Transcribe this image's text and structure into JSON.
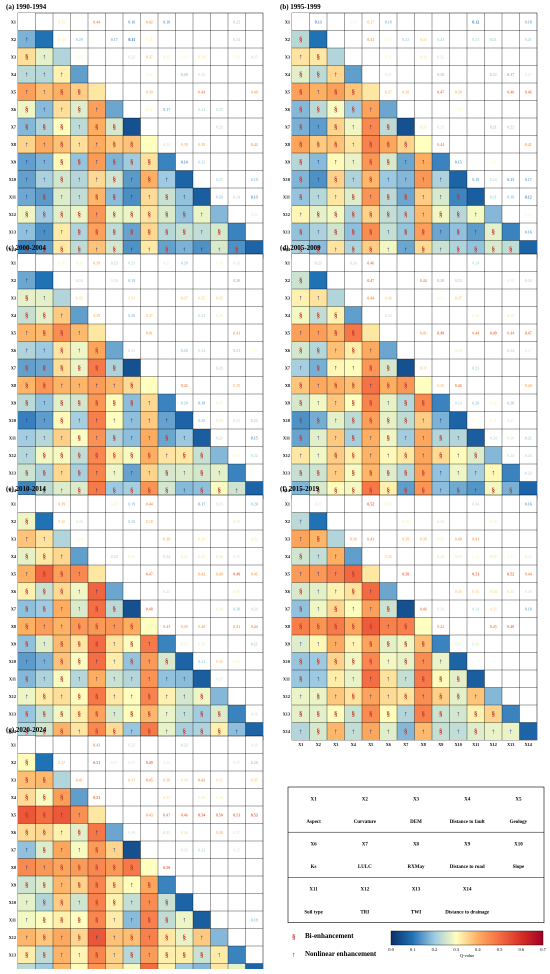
{
  "chart_data": {
    "type": "heatmap",
    "factors": [
      "X1",
      "X2",
      "X3",
      "X4",
      "X5",
      "X6",
      "X7",
      "X8",
      "X9",
      "X10",
      "X11",
      "X12",
      "X13",
      "X14"
    ],
    "panels": [
      {
        "title": "(a) 1990-1994"
      },
      {
        "title": "(b) 1995-1999"
      },
      {
        "title": "(c) 2000-2004"
      },
      {
        "title": "(d) 2005-2009"
      },
      {
        "title": "(e) 2010-2014"
      },
      {
        "title": "(f) 2015-2019"
      },
      {
        "title": "(g) 2020-2024"
      }
    ],
    "colorbar": {
      "label": "Q-value",
      "min": 0.0,
      "max": 0.7,
      "ticks": [
        "0.0",
        "0.1",
        "0.2",
        "0.3",
        "0.4",
        "0.5",
        "0.6",
        "0.7"
      ],
      "colors": [
        "#08306b",
        "#2171b5",
        "#9ecae1",
        "#ffffbf",
        "#fdae61",
        "#f46d43",
        "#d73027",
        "#a50026"
      ]
    },
    "symbols": {
      "bi": "§",
      "nonlinear": "↑"
    },
    "legend": {
      "bi_label": "Bi-enhancement",
      "nonlinear_label": "Nonlinear enhancement"
    },
    "factor_table": [
      [
        "X1",
        "X2",
        "X3",
        "X4",
        "X5"
      ],
      [
        "Aspect",
        "Curvature",
        "DEM",
        "Distance to fault",
        "Geology"
      ],
      [
        "X6",
        "X7",
        "X8",
        "X9",
        "X10"
      ],
      [
        "Ks",
        "LULC",
        "RXMay",
        "Distance to road",
        "Slope"
      ],
      [
        "X11",
        "X12",
        "X13",
        "X14",
        ""
      ],
      [
        "Soil type",
        "TRI",
        "TWI",
        "Distance to drainage",
        ""
      ]
    ]
  }
}
